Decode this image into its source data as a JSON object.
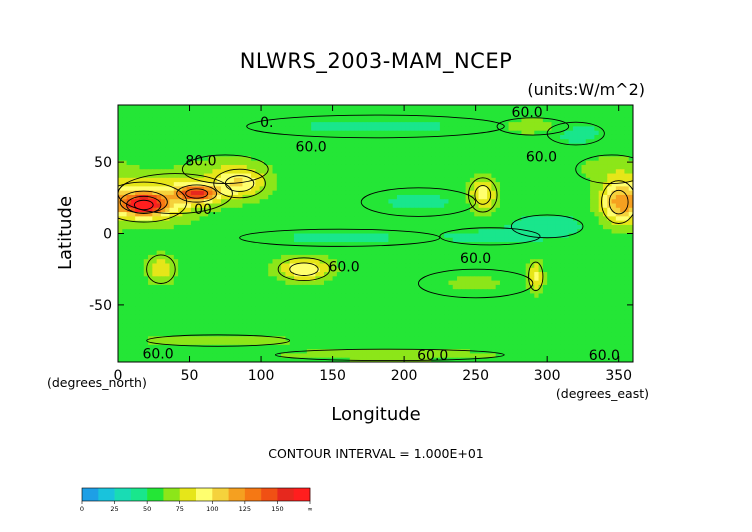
{
  "chart_data": {
    "type": "heatmap",
    "title": "NLWRS_2003-MAM_NCEP",
    "units": "(units:W/m^2)",
    "xlabel": "Longitude",
    "ylabel": "Latitude",
    "x_unit_note": "(degrees_east)",
    "y_unit_note": "(degrees_north)",
    "xlim": [
      0,
      360
    ],
    "ylim": [
      -90,
      90
    ],
    "x_ticks": [
      0,
      50,
      100,
      150,
      200,
      250,
      300,
      350
    ],
    "y_ticks": [
      -50,
      0,
      50
    ],
    "contour_interval": "CONTOUR INTERVAL = 1.000E+01",
    "contour_labels": [
      {
        "text": "60.0",
        "lon": 286,
        "lat": 85
      },
      {
        "text": "0.",
        "lon": 104,
        "lat": 78
      },
      {
        "text": "60.0",
        "lon": 296,
        "lat": 54
      },
      {
        "text": "80.0",
        "lon": 58,
        "lat": 51
      },
      {
        "text": "60.0",
        "lon": 135,
        "lat": 61
      },
      {
        "text": "00.",
        "lon": 61,
        "lat": 17
      },
      {
        "text": "60.0",
        "lon": 158,
        "lat": -23
      },
      {
        "text": "60.0",
        "lon": 250,
        "lat": -17
      },
      {
        "text": "60.0",
        "lon": 28,
        "lat": -84
      },
      {
        "text": "60.0",
        "lon": 220,
        "lat": -85
      },
      {
        "text": "60.0",
        "lon": 340,
        "lat": -85
      }
    ],
    "colorbar": {
      "ticks": [
        "0",
        "25",
        "50",
        "75",
        "100",
        "125",
        "150",
        "∞"
      ],
      "bins": [
        {
          "from": 0,
          "to": 12.5,
          "color": "#1e9fe6"
        },
        {
          "from": 12.5,
          "to": 25,
          "color": "#19c3dc"
        },
        {
          "from": 25,
          "to": 37.5,
          "color": "#19dcb4"
        },
        {
          "from": 37.5,
          "to": 50,
          "color": "#19e68c"
        },
        {
          "from": 50,
          "to": 62.5,
          "color": "#24e636"
        },
        {
          "from": 62.5,
          "to": 75,
          "color": "#8ce619"
        },
        {
          "from": 75,
          "to": 87.5,
          "color": "#e6e619"
        },
        {
          "from": 87.5,
          "to": 100,
          "color": "#ffff6e"
        },
        {
          "from": 100,
          "to": 112.5,
          "color": "#f5d23c"
        },
        {
          "from": 112.5,
          "to": 125,
          "color": "#f5a020"
        },
        {
          "from": 125,
          "to": 137.5,
          "color": "#f57814"
        },
        {
          "from": 137.5,
          "to": 150,
          "color": "#f05014"
        },
        {
          "from": 150,
          "to": 162.5,
          "color": "#e6281e"
        },
        {
          "from": 162.5,
          "to": 175,
          "color": "#ff1e1e"
        }
      ]
    },
    "field": {
      "background_value": 56,
      "features": [
        {
          "lon": 18,
          "lat": 22,
          "rlon": 30,
          "rlat": 14,
          "value": 100
        },
        {
          "lon": 40,
          "lat": 28,
          "rlon": 40,
          "rlat": 14,
          "value": 70
        },
        {
          "lon": 18,
          "lat": 20,
          "rlon": 12,
          "rlat": 6,
          "value": 160
        },
        {
          "lon": 55,
          "lat": 28,
          "rlon": 14,
          "rlat": 6,
          "value": 135
        },
        {
          "lon": 85,
          "lat": 35,
          "rlon": 18,
          "rlat": 10,
          "value": 95
        },
        {
          "lon": 75,
          "lat": 45,
          "rlon": 30,
          "rlat": 10,
          "value": 68
        },
        {
          "lon": 255,
          "lat": 27,
          "rlon": 10,
          "rlat": 12,
          "value": 95
        },
        {
          "lon": 350,
          "lat": 22,
          "rlon": 12,
          "rlat": 15,
          "value": 100
        },
        {
          "lon": 345,
          "lat": 45,
          "rlon": 25,
          "rlat": 10,
          "value": 68
        },
        {
          "lon": 130,
          "lat": -25,
          "rlon": 18,
          "rlat": 8,
          "value": 100
        },
        {
          "lon": 30,
          "lat": -25,
          "rlon": 10,
          "rlat": 10,
          "value": 85
        },
        {
          "lon": 292,
          "lat": -30,
          "rlon": 5,
          "rlat": 10,
          "value": 90
        },
        {
          "lon": 250,
          "lat": -35,
          "rlon": 40,
          "rlat": 10,
          "value": 64
        },
        {
          "lon": 70,
          "lat": -75,
          "rlon": 50,
          "rlat": 4,
          "value": 75
        },
        {
          "lon": 190,
          "lat": -85,
          "rlon": 80,
          "rlat": 4,
          "value": 72
        },
        {
          "lon": 290,
          "lat": 75,
          "rlon": 25,
          "rlat": 6,
          "value": 72
        },
        {
          "lon": 260,
          "lat": -2,
          "rlon": 35,
          "rlat": 6,
          "value": 48
        },
        {
          "lon": 155,
          "lat": -3,
          "rlon": 70,
          "rlat": 6,
          "value": 48
        },
        {
          "lon": 210,
          "lat": 22,
          "rlon": 40,
          "rlat": 10,
          "value": 48
        },
        {
          "lon": 300,
          "lat": 5,
          "rlon": 25,
          "rlat": 8,
          "value": 40
        },
        {
          "lon": 180,
          "lat": 75,
          "rlon": 90,
          "rlat": 8,
          "value": 48
        },
        {
          "lon": 320,
          "lat": 70,
          "rlon": 20,
          "rlat": 8,
          "value": 45
        }
      ]
    }
  }
}
